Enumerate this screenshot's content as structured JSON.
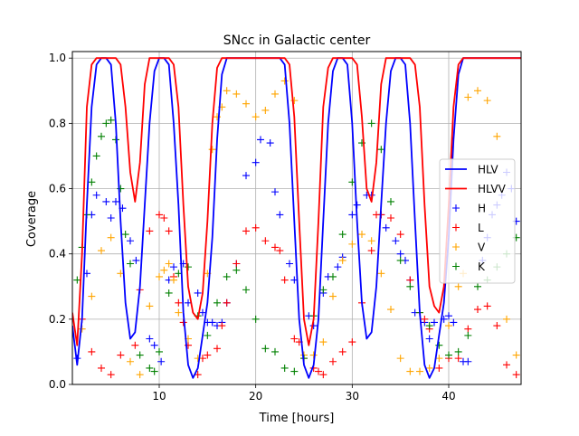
{
  "chart_data": {
    "type": "line",
    "title": "SNcc in Galactic center",
    "xlabel": "Time [hours]",
    "ylabel": "Coverage",
    "xlim": [
      1,
      47.5
    ],
    "ylim": [
      0,
      1.02
    ],
    "x_ticks": [
      10,
      20,
      30,
      40
    ],
    "x_tick_labels": [
      "10",
      "20",
      "30",
      "40"
    ],
    "y_ticks": [
      0,
      0.2,
      0.4,
      0.6,
      0.8,
      1.0
    ],
    "y_tick_labels": [
      "0.0",
      "0.2",
      "0.4",
      "0.6",
      "0.8",
      "1.0"
    ],
    "grid": true,
    "legend_position": "center-right",
    "series": [
      {
        "name": "HLV",
        "style": "line",
        "color": "#0000ff",
        "x": [
          1,
          1.5,
          2,
          2.5,
          3,
          3.5,
          4,
          4.5,
          5,
          5.5,
          6,
          6.5,
          7,
          7.5,
          8,
          8.5,
          9,
          9.5,
          10,
          10.5,
          11,
          11.5,
          12,
          12.5,
          13,
          13.5,
          14,
          14.5,
          15,
          15.5,
          16,
          16.5,
          17,
          17.5,
          18,
          18.5,
          19,
          20,
          21,
          22,
          22.5,
          23,
          23.5,
          24,
          24.5,
          25,
          25.5,
          26,
          26.5,
          27,
          27.5,
          28,
          28.5,
          29,
          29.5,
          30,
          30.5,
          31,
          31.5,
          32,
          32.5,
          33,
          33.5,
          34,
          34.5,
          35,
          35.5,
          36,
          36.5,
          37,
          37.5,
          38,
          38.5,
          39,
          39.5,
          40,
          40.5,
          41,
          41.5,
          42,
          43,
          44,
          45,
          46,
          47,
          47.5
        ],
        "y": [
          0.18,
          0.06,
          0.2,
          0.55,
          0.85,
          0.98,
          1.0,
          1.0,
          0.98,
          0.8,
          0.5,
          0.25,
          0.14,
          0.16,
          0.3,
          0.55,
          0.8,
          0.96,
          1.0,
          1.0,
          0.98,
          0.8,
          0.55,
          0.22,
          0.06,
          0.02,
          0.05,
          0.15,
          0.25,
          0.45,
          0.75,
          0.95,
          1.0,
          1.0,
          1.0,
          1.0,
          1.0,
          1.0,
          1.0,
          1.0,
          1.0,
          0.98,
          0.8,
          0.5,
          0.2,
          0.06,
          0.02,
          0.06,
          0.2,
          0.5,
          0.8,
          0.96,
          1.0,
          1.0,
          0.98,
          0.8,
          0.5,
          0.25,
          0.14,
          0.16,
          0.3,
          0.55,
          0.8,
          0.96,
          1.0,
          1.0,
          0.98,
          0.8,
          0.5,
          0.22,
          0.06,
          0.02,
          0.05,
          0.15,
          0.25,
          0.45,
          0.75,
          0.95,
          1.0,
          1.0,
          1.0,
          1.0,
          1.0,
          1.0,
          1.0,
          1.0
        ]
      },
      {
        "name": "HLVV",
        "style": "line",
        "color": "#ff0000",
        "x": [
          1,
          1.5,
          2,
          2.5,
          3,
          3.5,
          4,
          4.5,
          5,
          5.5,
          6,
          6.5,
          7,
          7.5,
          8,
          8.5,
          9,
          9.5,
          10,
          10.5,
          11,
          11.5,
          12,
          12.5,
          13,
          13.5,
          14,
          14.5,
          15,
          15.5,
          16,
          16.5,
          17,
          17.5,
          18,
          18.5,
          19,
          20,
          21,
          22,
          22.5,
          23,
          23.5,
          24,
          24.5,
          25,
          25.5,
          26,
          26.5,
          27,
          27.5,
          28,
          28.5,
          29,
          29.5,
          30,
          30.5,
          31,
          31.5,
          32,
          32.5,
          33,
          33.5,
          34,
          34.5,
          35,
          35.5,
          36,
          36.5,
          37,
          37.5,
          38,
          38.5,
          39,
          39.5,
          40,
          40.5,
          41,
          41.5,
          42,
          43,
          44,
          45,
          46,
          47,
          47.5
        ],
        "y": [
          0.22,
          0.12,
          0.4,
          0.85,
          0.98,
          1.0,
          1.0,
          1.0,
          1.0,
          1.0,
          0.98,
          0.85,
          0.65,
          0.56,
          0.68,
          0.92,
          1.0,
          1.0,
          1.0,
          1.0,
          1.0,
          0.98,
          0.85,
          0.55,
          0.3,
          0.22,
          0.2,
          0.28,
          0.5,
          0.8,
          0.97,
          1.0,
          1.0,
          1.0,
          1.0,
          1.0,
          1.0,
          1.0,
          1.0,
          1.0,
          1.0,
          1.0,
          0.98,
          0.82,
          0.5,
          0.2,
          0.12,
          0.2,
          0.5,
          0.85,
          0.97,
          1.0,
          1.0,
          1.0,
          1.0,
          1.0,
          0.98,
          0.82,
          0.6,
          0.56,
          0.68,
          0.92,
          1.0,
          1.0,
          1.0,
          1.0,
          1.0,
          1.0,
          0.98,
          0.85,
          0.55,
          0.3,
          0.24,
          0.22,
          0.3,
          0.55,
          0.85,
          0.98,
          1.0,
          1.0,
          1.0,
          1.0,
          1.0,
          1.0,
          1.0,
          1.0
        ]
      },
      {
        "name": "H",
        "style": "plus",
        "color": "#0000ff",
        "x": [
          1.5,
          2.5,
          3,
          3.5,
          4.5,
          5,
          5.5,
          6.2,
          7,
          7.6,
          9,
          9.5,
          10.2,
          11,
          11.5,
          12.5,
          13,
          14,
          14.5,
          15,
          15.5,
          16,
          16.5,
          17,
          18,
          19,
          20,
          20.5,
          21.5,
          22,
          22.5,
          23.5,
          24,
          25.5,
          26,
          27,
          27.5,
          28.5,
          29,
          30,
          30.5,
          31.5,
          32,
          33,
          33.5,
          34.5,
          35,
          35.5,
          36,
          36.5,
          37.5,
          38,
          38.5,
          39.5,
          40,
          40.5,
          41.5,
          42,
          43.5,
          44,
          44.5,
          45,
          45.5,
          46,
          46.5,
          47
        ],
        "y": [
          0.08,
          0.34,
          0.52,
          0.58,
          0.56,
          0.51,
          0.56,
          0.54,
          0.44,
          0.38,
          0.14,
          0.12,
          0.07,
          0.32,
          0.36,
          0.37,
          0.25,
          0.28,
          0.22,
          0.19,
          0.19,
          0.18,
          0.19,
          0.25,
          0.37,
          0.64,
          0.68,
          0.75,
          0.74,
          0.59,
          0.52,
          0.37,
          0.32,
          0.21,
          0.18,
          0.28,
          0.33,
          0.36,
          0.39,
          0.52,
          0.55,
          0.58,
          0.58,
          0.52,
          0.48,
          0.44,
          0.4,
          0.38,
          0.32,
          0.22,
          0.19,
          0.14,
          0.19,
          0.2,
          0.21,
          0.19,
          0.07,
          0.07,
          0.38,
          0.45,
          0.52,
          0.55,
          0.58,
          0.65,
          0.6,
          0.5
        ]
      },
      {
        "name": "L",
        "style": "plus",
        "color": "#ff0000",
        "x": [
          2,
          3,
          4,
          5,
          6,
          7.5,
          8,
          9,
          10,
          10.5,
          11,
          11.5,
          12,
          12.5,
          13,
          14,
          14.5,
          15,
          16,
          16.5,
          17,
          18,
          19,
          20,
          21,
          22,
          22.5,
          23,
          24,
          24.5,
          25,
          26,
          26.5,
          27,
          28,
          29,
          30,
          31,
          32,
          32.5,
          33,
          34,
          35,
          36,
          37,
          37.5,
          38,
          39,
          40,
          41,
          42,
          43,
          44,
          45,
          46,
          47
        ],
        "y": [
          0.2,
          0.1,
          0.05,
          0.03,
          0.09,
          0.12,
          0.29,
          0.47,
          0.52,
          0.51,
          0.47,
          0.33,
          0.25,
          0.19,
          0.12,
          0.03,
          0.08,
          0.09,
          0.11,
          0.18,
          0.25,
          0.37,
          0.47,
          0.48,
          0.44,
          0.42,
          0.41,
          0.32,
          0.14,
          0.13,
          0.08,
          0.05,
          0.04,
          0.03,
          0.07,
          0.1,
          0.13,
          0.25,
          0.41,
          0.52,
          0.52,
          0.51,
          0.46,
          0.32,
          0.22,
          0.2,
          0.17,
          0.05,
          0.08,
          0.08,
          0.17,
          0.23,
          0.24,
          0.18,
          0.06,
          0.03
        ]
      },
      {
        "name": "V",
        "style": "plus",
        "color": "#ffa500",
        "x": [
          2,
          3,
          4,
          5,
          6,
          7,
          8,
          9,
          10,
          10.5,
          11,
          11.5,
          12,
          13,
          14,
          15,
          15.5,
          16,
          16.5,
          17,
          18,
          19,
          20,
          21,
          22,
          23,
          24,
          25,
          26,
          27,
          28,
          29,
          30,
          31,
          32,
          33,
          34,
          35,
          36,
          37,
          38,
          39,
          40,
          41,
          41.5,
          42,
          43,
          44,
          45,
          46,
          47
        ],
        "y": [
          0.17,
          0.27,
          0.41,
          0.45,
          0.34,
          0.07,
          0.03,
          0.24,
          0.33,
          0.35,
          0.37,
          0.32,
          0.22,
          0.14,
          0.08,
          0.34,
          0.72,
          0.82,
          0.85,
          0.9,
          0.89,
          0.86,
          0.82,
          0.84,
          0.89,
          0.93,
          0.87,
          0.09,
          0.09,
          0.13,
          0.27,
          0.38,
          0.43,
          0.46,
          0.44,
          0.34,
          0.23,
          0.08,
          0.04,
          0.04,
          0.05,
          0.08,
          0.18,
          0.3,
          0.34,
          0.88,
          0.9,
          0.87,
          0.76,
          0.2,
          0.09
        ]
      },
      {
        "name": "K",
        "style": "plus",
        "color": "#008000",
        "x": [
          1.5,
          2,
          2.5,
          3,
          3.5,
          4,
          4.5,
          5,
          5.5,
          6,
          6.5,
          7,
          8,
          9,
          9.5,
          10,
          11,
          12,
          13,
          14,
          15,
          16,
          17,
          18,
          19,
          20,
          21,
          22,
          23,
          24,
          25,
          26,
          27,
          28,
          29,
          30,
          31,
          32,
          33,
          34,
          35,
          36,
          37,
          38,
          39,
          40,
          41,
          42,
          43,
          44,
          45,
          46,
          47
        ],
        "y": [
          0.32,
          0.42,
          0.52,
          0.62,
          0.7,
          0.76,
          0.8,
          0.81,
          0.75,
          0.6,
          0.46,
          0.37,
          0.09,
          0.05,
          0.04,
          0.1,
          0.28,
          0.34,
          0.36,
          0.21,
          0.15,
          0.25,
          0.33,
          0.35,
          0.29,
          0.2,
          0.11,
          0.1,
          0.05,
          0.04,
          0.08,
          0.21,
          0.29,
          0.33,
          0.46,
          0.62,
          0.74,
          0.8,
          0.72,
          0.56,
          0.38,
          0.3,
          0.22,
          0.18,
          0.12,
          0.09,
          0.1,
          0.15,
          0.3,
          0.32,
          0.36,
          0.4,
          0.45
        ]
      }
    ]
  }
}
